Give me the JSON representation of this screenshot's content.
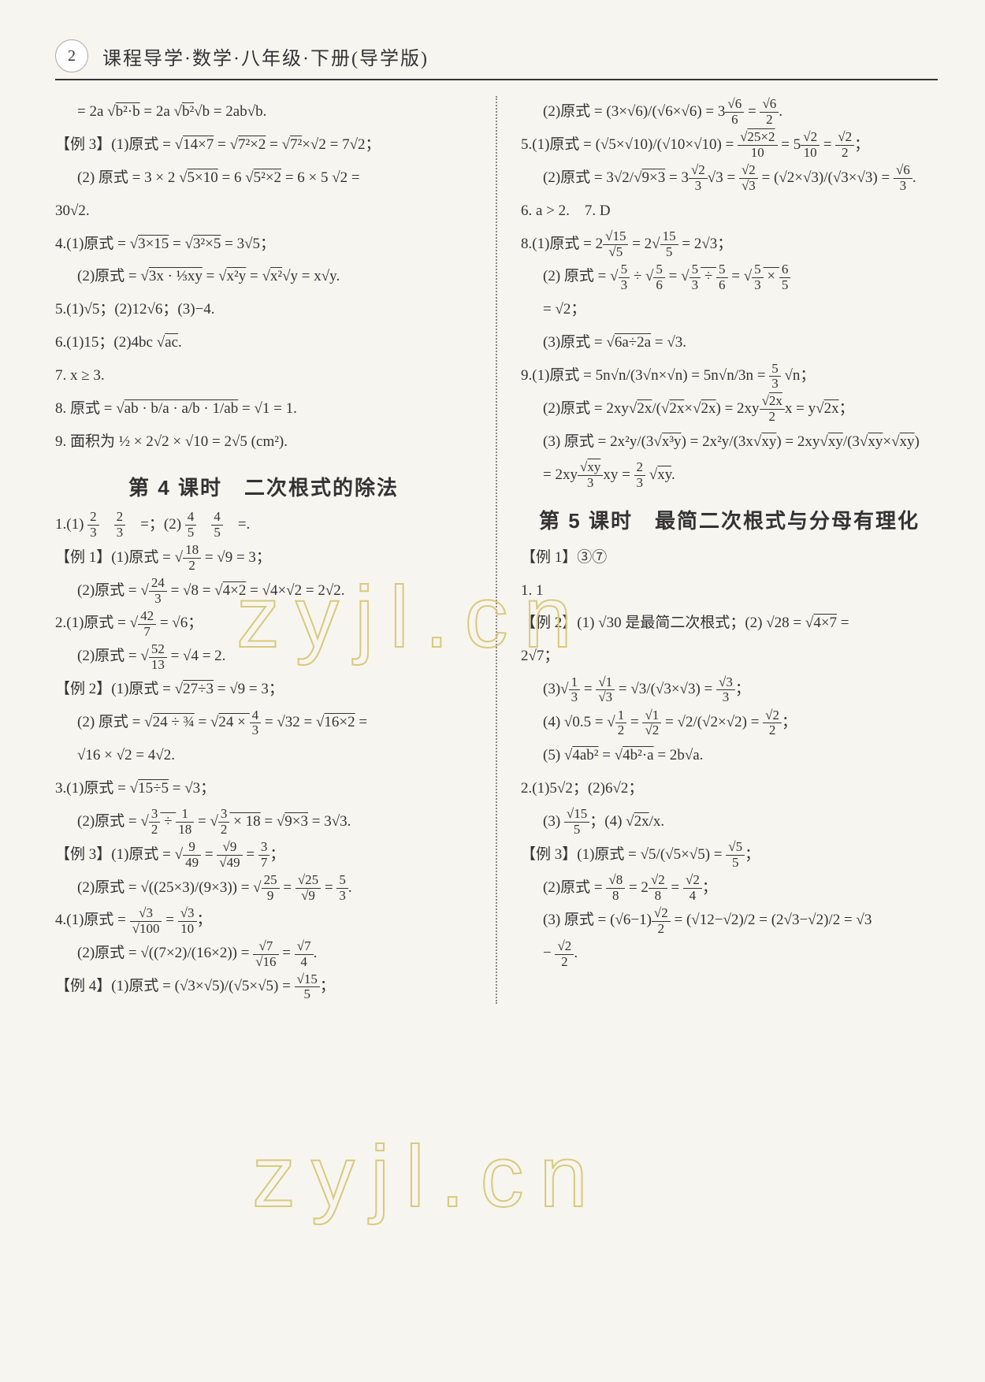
{
  "page_number": "2",
  "book_title": "课程导学·数学·八年级·下册(导学版)",
  "watermark": "zyjl.cn",
  "section_titles": {
    "s4": "第 4 课时　二次根式的除法",
    "s5": "第 5 课时　最简二次根式与分母有理化"
  },
  "left": [
    "= 2a √(b²·b) = 2a √(b²)√b = 2ab√b.",
    "【例 3】(1)原式 = √(14×7) = √(7²×2) = √(7²)×√2 = 7√2；",
    "(2) 原式 = 3 × 2 √(5×10) = 6 √(5²×2) = 6 × 5 √2 =",
    "30√2.",
    "4.(1)原式 = √(3×15) = √(3²×5) = 3√5；",
    "(2)原式 = √(3x · ⅓xy) = √(x²y) = √(x²)√y = x√y.",
    "5.(1)√5；(2)12√6；(3)−4.",
    "6.(1)15；(2)4bc √(ac).",
    "7. x ≥ 3.",
    "8. 原式 = √(ab · b/a · a/b · 1/ab) = √1 = 1.",
    "9. 面积为 ½ × 2√2 × √10 = 2√5 (cm²).",
    "1.(1) 2/3　2/3　=；(2) 4/5　4/5　=.",
    "【例 1】(1)原式 = √(18/2) = √9 = 3；",
    "(2)原式 = √(24/3) = √8 = √(4×2) = √4×√2 = 2√2.",
    "2.(1)原式 = √(42/7) = √6；",
    "(2)原式 = √(52/13) = √4 = 2.",
    "【例 2】(1)原式 = √(27÷3) = √9 = 3；",
    "(2) 原式 = √(24 ÷ ¾) = √(24 × 4/3) = √32 = √(16×2) =",
    "√16 × √2 = 4√2.",
    "3.(1)原式 = √(15÷5) = √3；",
    "(2)原式 = √(3/2 ÷ 1/18) = √(3/2 × 18) = √(9×3) = 3√3.",
    "【例 3】(1)原式 = √(9/49) = √9/√49 = 3/7；",
    "(2)原式 = √((25×3)/(9×3)) = √(25/9) = √25/√9 = 5/3.",
    "4.(1)原式 = √3/√100 = √3/10；",
    "(2)原式 = √((7×2)/(16×2)) = √7/√16 = √7/4.",
    "【例 4】(1)原式 = (√3×√5)/(√5×√5) = √15/5；"
  ],
  "right": [
    "(2)原式 = (3×√6)/(√6×√6) = 3√6/6 = √6/2.",
    "5.(1)原式 = (√5×√10)/(√10×√10) = √(25×2)/10 = 5√2/10 = √2/2；",
    "(2)原式 = 3√2/√(9×3) = 3√2/3√3 = √2/√3 = (√2×√3)/(√3×√3) = √6/3.",
    "6. a > 2.　7. D",
    "8.(1)原式 = 2√15/√5 = 2√(15/5) = 2√3；",
    "(2) 原式 = √(5/3) ÷ √(5/6) = √(5/3 ÷ 5/6) = √(5/3 × 6/5)",
    "= √2；",
    "(3)原式 = √(6a÷2a) = √3.",
    "9.(1)原式 = 5n√n/(3√n×√n) = 5n√n/3n = 5/3 √n；",
    "(2)原式 = 2xy√(2x)/(√(2x)×√(2x)) = 2xy√(2x)/2x = y√(2x)；",
    "(3) 原式 = 2x²y/(3√(x³y)) = 2x²y/(3x√(xy)) = 2xy√(xy)/(3√(xy)×√(xy))",
    "= 2xy√(xy)/3xy = 2/3 √(xy).",
    "【例 1】③⑦",
    "1. 1",
    "【例 2】(1) √30 是最简二次根式；(2) √28 = √(4×7) =",
    "2√7；",
    "(3)√(1/3) = √1/√3 = √3/(√3×√3) = √3/3；",
    "(4) √0.5 = √(1/2) = √1/√2 = √2/(√2×√2) = √2/2；",
    "(5) √(4ab²) = √(4b²·a) = 2b√a.",
    "2.(1)5√2；(2)6√2；",
    "(3) √15/5；(4) √(2x)/x.",
    "【例 3】(1)原式 = √5/(√5×√5) = √5/5；",
    "(2)原式 = √8/8 = 2√2/8 = √2/4；",
    "(3) 原式 = (√6−1)√2/2 = (√12−√2)/2 = (2√3−√2)/2 = √3",
    "− √2/2."
  ]
}
